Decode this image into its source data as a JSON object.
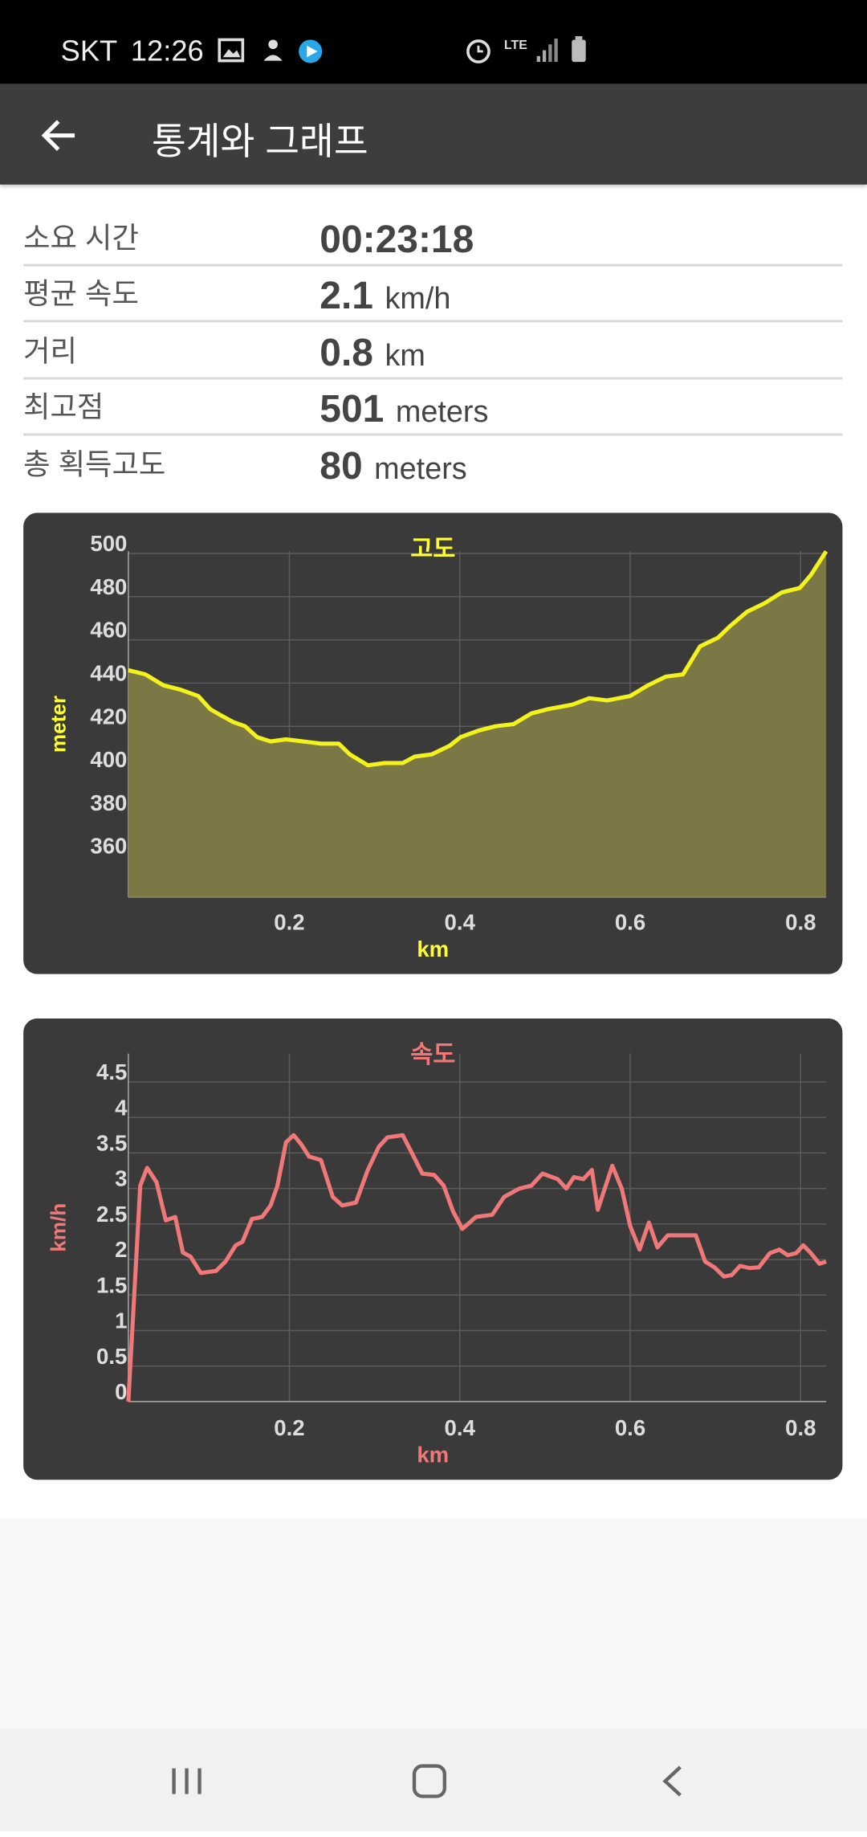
{
  "status_bar": {
    "carrier": "SKT",
    "time": "12:26",
    "network": "LTE"
  },
  "app_bar": {
    "title": "통계와 그래프"
  },
  "stats": {
    "rows": [
      {
        "label": "소요 시간",
        "value": "00:23:18",
        "unit": ""
      },
      {
        "label": "평균 속도",
        "value": "2.1",
        "unit": "km/h"
      },
      {
        "label": "거리",
        "value": "0.8",
        "unit": "km"
      },
      {
        "label": "최고점",
        "value": "501",
        "unit": "meters"
      },
      {
        "label": "총 획득고도",
        "value": "80",
        "unit": "meters"
      }
    ]
  },
  "chart_data": [
    {
      "type": "area",
      "title": "고도",
      "x_label": "km",
      "y_label": "meter",
      "color": "#f4f21c",
      "fill_color": "#7b7846",
      "x": [
        0.011,
        0.031,
        0.052,
        0.072,
        0.093,
        0.107,
        0.12,
        0.134,
        0.148,
        0.162,
        0.178,
        0.196,
        0.216,
        0.237,
        0.258,
        0.271,
        0.292,
        0.312,
        0.333,
        0.347,
        0.367,
        0.388,
        0.401,
        0.422,
        0.442,
        0.463,
        0.484,
        0.504,
        0.532,
        0.552,
        0.573,
        0.6,
        0.621,
        0.642,
        0.662,
        0.682,
        0.703,
        0.716,
        0.737,
        0.758,
        0.778,
        0.799,
        0.812,
        0.83
      ],
      "values": [
        446,
        444,
        439,
        437,
        434,
        428,
        425,
        422,
        420,
        415,
        413,
        414,
        413,
        412,
        412,
        407,
        402,
        403,
        403,
        406,
        407,
        411,
        415,
        418,
        420,
        421,
        426,
        428,
        430,
        433,
        432,
        434,
        439,
        443,
        444,
        457,
        461,
        466,
        473,
        477,
        482,
        484,
        490,
        501
      ],
      "xlim": [
        0.011,
        0.83
      ],
      "xticks": [
        0.2,
        0.4,
        0.6,
        0.8
      ],
      "ylim": [
        341,
        501
      ],
      "yticks": [
        360,
        380,
        400,
        420,
        440,
        460,
        480,
        500
      ],
      "grid": true
    },
    {
      "type": "line",
      "title": "속도",
      "x_label": "km",
      "y_label": "km/h",
      "color": "#f07878",
      "x": [
        0.011,
        0.025,
        0.033,
        0.044,
        0.055,
        0.066,
        0.075,
        0.084,
        0.096,
        0.114,
        0.125,
        0.137,
        0.145,
        0.156,
        0.168,
        0.178,
        0.186,
        0.196,
        0.205,
        0.214,
        0.223,
        0.237,
        0.251,
        0.262,
        0.278,
        0.292,
        0.305,
        0.315,
        0.333,
        0.342,
        0.356,
        0.37,
        0.381,
        0.392,
        0.403,
        0.419,
        0.438,
        0.452,
        0.47,
        0.484,
        0.497,
        0.515,
        0.525,
        0.534,
        0.545,
        0.555,
        0.562,
        0.579,
        0.59,
        0.6,
        0.611,
        0.622,
        0.632,
        0.644,
        0.668,
        0.677,
        0.688,
        0.699,
        0.71,
        0.719,
        0.729,
        0.74,
        0.751,
        0.764,
        0.775,
        0.785,
        0.795,
        0.803,
        0.812,
        0.822,
        0.83
      ],
      "values": [
        0,
        3.04,
        3.29,
        3.09,
        2.55,
        2.6,
        2.1,
        2.04,
        1.81,
        1.84,
        1.97,
        2.2,
        2.25,
        2.57,
        2.6,
        2.76,
        3.04,
        3.65,
        3.75,
        3.62,
        3.45,
        3.4,
        2.88,
        2.76,
        2.8,
        3.26,
        3.59,
        3.72,
        3.75,
        3.54,
        3.21,
        3.19,
        3.04,
        2.68,
        2.43,
        2.6,
        2.63,
        2.88,
        3.0,
        3.04,
        3.21,
        3.13,
        3.0,
        3.16,
        3.13,
        3.26,
        2.7,
        3.32,
        3.0,
        2.47,
        2.14,
        2.52,
        2.17,
        2.34,
        2.34,
        2.34,
        1.97,
        1.89,
        1.76,
        1.78,
        1.91,
        1.88,
        1.89,
        2.09,
        2.14,
        2.06,
        2.09,
        2.2,
        2.09,
        1.94,
        1.97
      ],
      "xlim": [
        0.011,
        0.83
      ],
      "xticks": [
        0.2,
        0.4,
        0.6,
        0.8
      ],
      "ylim": [
        0,
        4.9
      ],
      "yticks": [
        0,
        0.5,
        1,
        1.5,
        2,
        2.5,
        3,
        3.5,
        4,
        4.5
      ],
      "grid": true
    }
  ]
}
